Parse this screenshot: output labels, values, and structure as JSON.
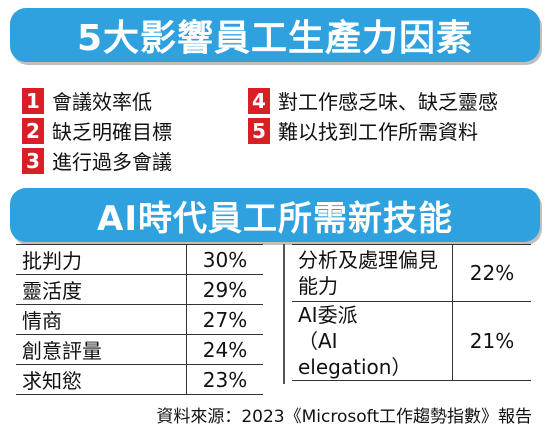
{
  "title1": "5大影響員工生產力因素",
  "factors": [
    {
      "num": "1",
      "text": "會議效率低"
    },
    {
      "num": "2",
      "text": "缺乏明確目標"
    },
    {
      "num": "3",
      "text": "進行過多會議"
    },
    {
      "num": "4",
      "text": "對工作感乏味、缺乏靈感"
    },
    {
      "num": "5",
      "text": "難以找到工作所需資料"
    }
  ],
  "title2": "AI時代員工所需新技能",
  "skills_left": [
    {
      "label": "批判力",
      "value": "30%"
    },
    {
      "label": "靈活度",
      "value": "29%"
    },
    {
      "label": "情商",
      "value": "27%"
    },
    {
      "label": "創意評量",
      "value": "24%"
    },
    {
      "label": "求知慾",
      "value": "23%"
    }
  ],
  "skills_right": [
    {
      "label_line1": "分析及處理偏見",
      "label_line2": "能力",
      "value": "22%"
    },
    {
      "label_line1": "AI委派",
      "label_line2": "（AI elegation）",
      "value": "21%"
    }
  ],
  "source": "資料來源：2023《Microsoft工作趨勢指數》報告",
  "colors": {
    "banner": "#2fa1de",
    "number_badge": "#d91f26"
  }
}
